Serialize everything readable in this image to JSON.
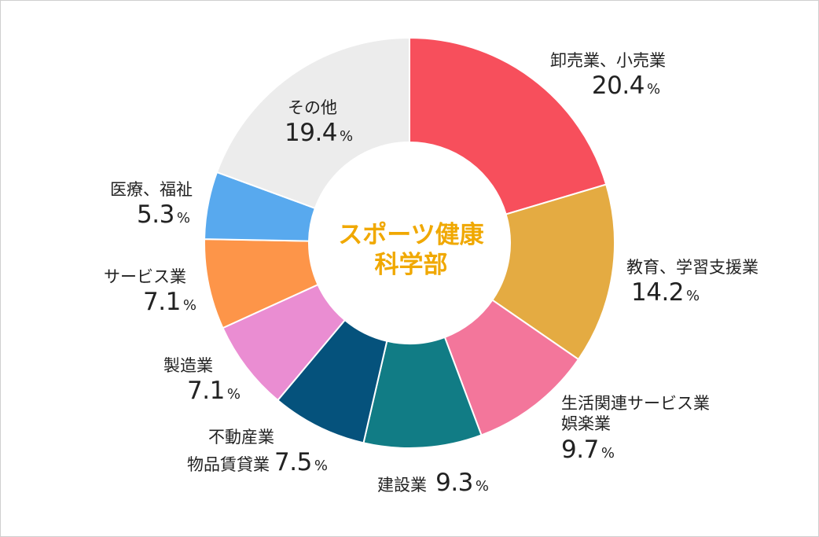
{
  "chart_data": {
    "type": "pie",
    "donut": true,
    "center_label": [
      "スポーツ健康",
      "科学部"
    ],
    "unit": "%",
    "slices": [
      {
        "name": "卸売業、小売業",
        "value": 20.4,
        "color": "#f74f5c"
      },
      {
        "name": "教育、学習支援業",
        "value": 14.2,
        "color": "#e4ab42"
      },
      {
        "name": "生活関連サービス業 娯楽業",
        "value": 9.7,
        "color": "#f3769b"
      },
      {
        "name": "建設業",
        "value": 9.3,
        "color": "#117c85"
      },
      {
        "name": "不動産業 物品賃貸業",
        "value": 7.5,
        "color": "#05527c"
      },
      {
        "name": "製造業",
        "value": 7.1,
        "color": "#ea8dd2"
      },
      {
        "name": "サービス業",
        "value": 7.1,
        "color": "#fd9549"
      },
      {
        "name": "医療、福祉",
        "value": 5.3,
        "color": "#58a9ee"
      },
      {
        "name": "その他",
        "value": 19.4,
        "color": "#ececec"
      }
    ]
  },
  "labels": {
    "s0": {
      "line1": "卸売業、小売業",
      "value": "20.4",
      "pct": "%"
    },
    "s1": {
      "line1": "教育、学習支援業",
      "value": "14.2",
      "pct": "%"
    },
    "s2": {
      "line1": "生活関連サービス業",
      "line2": "娯楽業",
      "value": "9.7",
      "pct": "%"
    },
    "s3": {
      "line1": "建設業",
      "value": "9.3",
      "pct": "%"
    },
    "s4": {
      "line1": "不動産業",
      "line2": "物品賃貸業",
      "value": "7.5",
      "pct": "%"
    },
    "s5": {
      "line1": "製造業",
      "value": "7.1",
      "pct": "%"
    },
    "s6": {
      "line1": "サービス業",
      "value": "7.1",
      "pct": "%"
    },
    "s7": {
      "line1": "医療、福祉",
      "value": "5.3",
      "pct": "%"
    },
    "s8": {
      "line1": "その他",
      "value": "19.4",
      "pct": "%"
    }
  }
}
